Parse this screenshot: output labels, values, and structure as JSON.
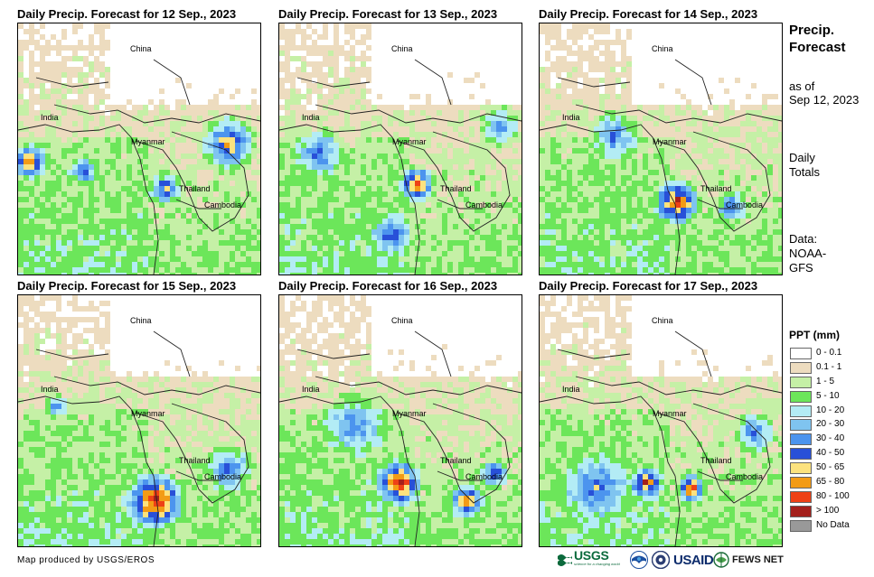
{
  "panels": [
    {
      "title": "Daily Precip. Forecast for 12 Sep., 2023",
      "day": 0
    },
    {
      "title": "Daily Precip. Forecast for 13 Sep., 2023",
      "day": 1
    },
    {
      "title": "Daily Precip. Forecast for 14 Sep., 2023",
      "day": 2
    },
    {
      "title": "Daily Precip. Forecast for 15 Sep., 2023",
      "day": 3
    },
    {
      "title": "Daily Precip. Forecast for 16 Sep., 2023",
      "day": 4
    },
    {
      "title": "Daily Precip. Forecast for 17 Sep., 2023",
      "day": 5
    }
  ],
  "places": {
    "china": "China",
    "india": "India",
    "myanmar": "Myanmar",
    "thailand": "Thailand",
    "cambodia": "Cambodia"
  },
  "sidebar": {
    "title": "Precip. Forecast",
    "as_of": "as of",
    "date": "Sep 12, 2023",
    "daily": "Daily",
    "totals": "Totals",
    "data_label": "Data:",
    "data_source_1": "NOAA-",
    "data_source_2": "GFS"
  },
  "legend": {
    "title": "PPT (mm)",
    "items": [
      {
        "label": "0 - 0.1",
        "color": "#ffffff"
      },
      {
        "label": "0.1 - 1",
        "color": "#eddcbf"
      },
      {
        "label": "1 - 5",
        "color": "#c5f0a6"
      },
      {
        "label": "5 - 10",
        "color": "#6ce65a"
      },
      {
        "label": "10 - 20",
        "color": "#b3ecf5"
      },
      {
        "label": "20 - 30",
        "color": "#7fc4f0"
      },
      {
        "label": "30 - 40",
        "color": "#4c94ee"
      },
      {
        "label": "40 - 50",
        "color": "#2850d8"
      },
      {
        "label": "50 - 65",
        "color": "#fce27e"
      },
      {
        "label": "65 - 80",
        "color": "#f39b16"
      },
      {
        "label": "80 - 100",
        "color": "#ee4116"
      },
      {
        "label": "> 100",
        "color": "#a4201c"
      },
      {
        "label": "No Data",
        "color": "#999999"
      }
    ]
  },
  "footer": {
    "credit": "Map produced by USGS/EROS"
  },
  "logos": {
    "usgs": "USGS",
    "usgs_tagline": "science for a changing world",
    "usaid": "USAID",
    "fewsnet": "FEWS NET"
  }
}
